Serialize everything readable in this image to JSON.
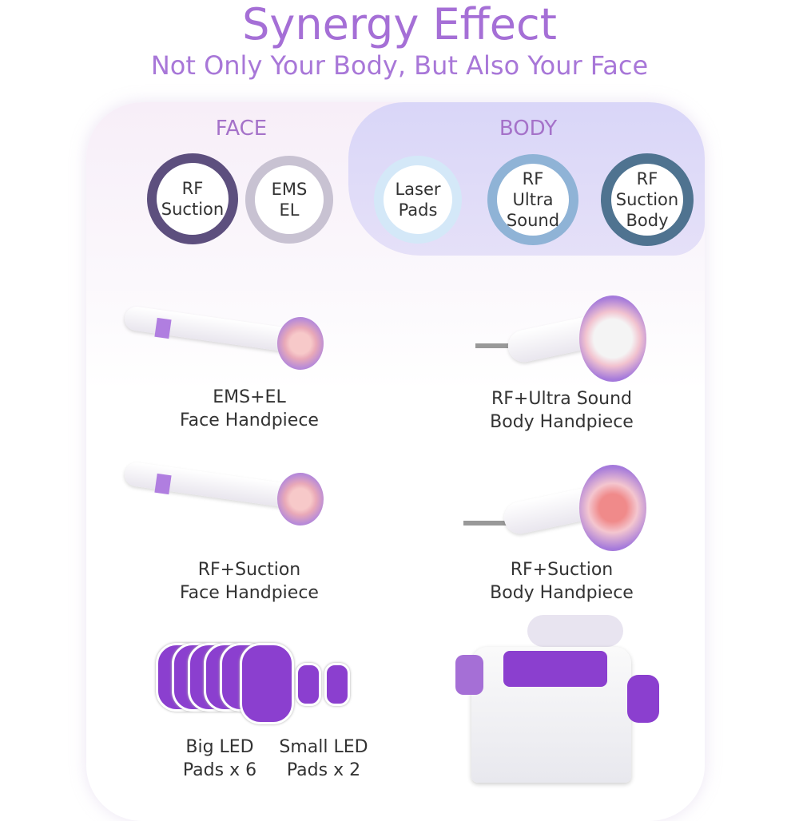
{
  "header": {
    "title": "Synergy Effect",
    "subtitle": "Not Only Your Body, But Also Your Face"
  },
  "groups": {
    "face": "FACE",
    "body": "BODY"
  },
  "functions": [
    {
      "label": "RF Suction",
      "ring": "#5d4f7e"
    },
    {
      "label": "EMS EL",
      "ring": "#c8c2d2"
    },
    {
      "label": "Laser Pads",
      "ring": "#d4e8f8"
    },
    {
      "label": "RF Ultra Sound",
      "ring": "#8fb3d6"
    },
    {
      "label": "RF Suction Body",
      "ring": "#4f7390"
    }
  ],
  "products": [
    {
      "line1": "EMS+EL",
      "line2": "Face Handpiece"
    },
    {
      "line1": "RF+Ultra Sound",
      "line2": "Body Handpiece"
    },
    {
      "line1": "RF+Suction",
      "line2": "Face Handpiece"
    },
    {
      "line1": "RF+Suction",
      "line2": "Body Handpiece"
    },
    {
      "line1": "Big LED",
      "line2": "Pads x 6"
    },
    {
      "line1": "Small LED",
      "line2": "Pads x 2"
    }
  ],
  "colors": {
    "accent": "#a56fd6",
    "pad": "#8b3fcf"
  }
}
